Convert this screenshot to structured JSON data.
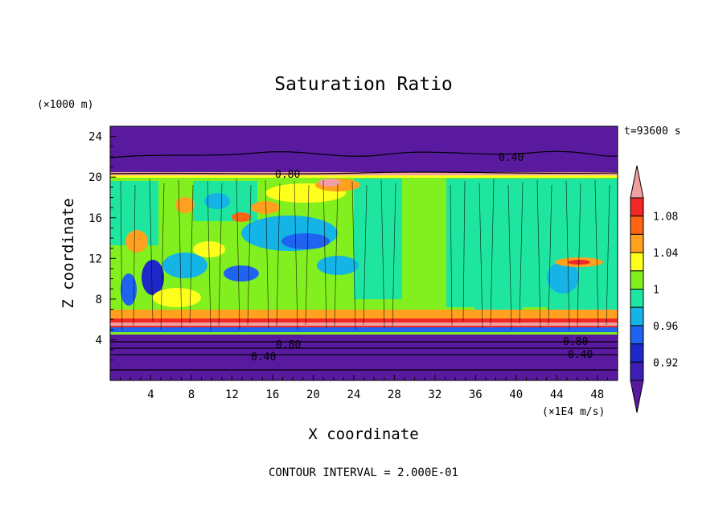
{
  "chart_data": {
    "type": "heatmap",
    "title": "Saturation Ratio",
    "xlabel": "X coordinate",
    "ylabel": "Z coordinate",
    "x_unit": "(×1E4 m/s)",
    "y_unit": "(×1000 m)",
    "time_label": "t=93600 s",
    "footer": "CONTOUR INTERVAL = 2.000E-01",
    "xlim": [
      0,
      50
    ],
    "ylim": [
      0,
      25
    ],
    "x_ticks": [
      "4",
      "8",
      "12",
      "16",
      "20",
      "24",
      "28",
      "32",
      "36",
      "40",
      "44",
      "48"
    ],
    "y_ticks": [
      "4",
      "8",
      "12",
      "16",
      "20",
      "24"
    ],
    "contour_labels": [
      "0.40",
      "0.80",
      "0.80",
      "0.40",
      "0.80",
      "0.40"
    ],
    "colorbar": {
      "levels": [
        0.9,
        0.92,
        0.94,
        0.96,
        0.98,
        1.0,
        1.02,
        1.04,
        1.06,
        1.08,
        1.1
      ],
      "tick_labels": [
        "0.92",
        "0.96",
        "1",
        "1.04",
        "1.08"
      ],
      "colors": [
        "#5a1aa0",
        "#3c1eb4",
        "#1e28c8",
        "#1e64f0",
        "#14b4e6",
        "#1ee6a0",
        "#82f01e",
        "#ffff1e",
        "#ffa01e",
        "#ff6414",
        "#f02828",
        "#f0a0a0"
      ]
    }
  }
}
